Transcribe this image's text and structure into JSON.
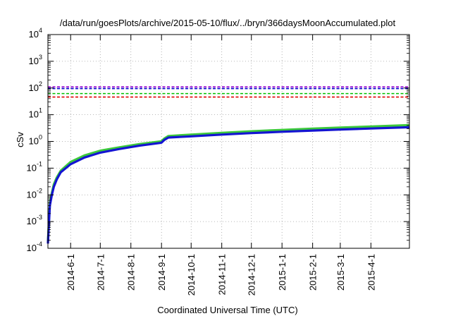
{
  "chart_data": {
    "type": "line",
    "title": "/data/run/goesPlots/archive/2015-05-10/flux/../bryn/366daysMoonAccumulated.plot",
    "xlabel": "Coordinated Universal Time (UTC)",
    "ylabel": "cSv",
    "yscale": "log",
    "ylim": [
      0.0001,
      10000
    ],
    "xlim": [
      "2014-05-09",
      "2015-05-10"
    ],
    "grid": true,
    "x_ticks": [
      "2014-6-1",
      "2014-7-1",
      "2014-8-1",
      "2014-9-1",
      "2014-10-1",
      "2014-11-1",
      "2014-12-1",
      "2015-1-1",
      "2015-2-1",
      "2015-3-1",
      "2015-4-1"
    ],
    "y_ticks": [
      {
        "value": 0.0001,
        "base": "10",
        "exp": "-4"
      },
      {
        "value": 0.001,
        "base": "10",
        "exp": "-3"
      },
      {
        "value": 0.01,
        "base": "10",
        "exp": "-2"
      },
      {
        "value": 0.1,
        "base": "10",
        "exp": "-1"
      },
      {
        "value": 1,
        "base": "10",
        "exp": "0"
      },
      {
        "value": 10,
        "base": "10",
        "exp": "1"
      },
      {
        "value": 100,
        "base": "10",
        "exp": "2"
      },
      {
        "value": 1000,
        "base": "10",
        "exp": "3"
      },
      {
        "value": 10000,
        "base": "10",
        "exp": "4"
      }
    ],
    "thresholds": [
      {
        "value": 110,
        "color": "#9400d3"
      },
      {
        "value": 95,
        "color": "#0000cd"
      },
      {
        "value": 62,
        "color": "#00c000"
      },
      {
        "value": 46,
        "color": "#e00000"
      }
    ],
    "series": [
      {
        "color": "#3cc83c",
        "x": [
          "2014-05-09",
          "2014-05-10",
          "2014-05-11",
          "2014-05-13",
          "2014-05-15",
          "2014-05-18",
          "2014-05-22",
          "2014-06-01",
          "2014-06-15",
          "2014-07-01",
          "2014-07-20",
          "2014-08-10",
          "2014-08-31",
          "2014-09-01",
          "2014-09-04",
          "2014-09-08",
          "2014-10-01",
          "2014-11-01",
          "2014-12-01",
          "2015-01-01",
          "2015-02-01",
          "2015-03-01",
          "2015-04-01",
          "2015-05-10"
        ],
        "y": [
          0.00018,
          0.001,
          0.005,
          0.012,
          0.025,
          0.045,
          0.08,
          0.17,
          0.3,
          0.45,
          0.6,
          0.8,
          1.0,
          1.02,
          1.3,
          1.6,
          1.8,
          2.1,
          2.4,
          2.7,
          3.0,
          3.3,
          3.6,
          4.1
        ]
      },
      {
        "color": "#1414d2",
        "x": [
          "2014-05-09",
          "2014-05-10",
          "2014-05-11",
          "2014-05-13",
          "2014-05-15",
          "2014-05-18",
          "2014-05-22",
          "2014-06-01",
          "2014-06-15",
          "2014-07-01",
          "2014-07-20",
          "2014-08-10",
          "2014-08-31",
          "2014-09-01",
          "2014-09-04",
          "2014-09-08",
          "2014-10-01",
          "2014-11-01",
          "2014-12-01",
          "2015-01-01",
          "2015-02-01",
          "2015-03-01",
          "2015-04-01",
          "2015-05-10"
        ],
        "y": [
          0.00015,
          0.0008,
          0.004,
          0.01,
          0.02,
          0.038,
          0.07,
          0.14,
          0.25,
          0.38,
          0.52,
          0.7,
          0.88,
          0.9,
          1.15,
          1.4,
          1.55,
          1.8,
          2.05,
          2.3,
          2.55,
          2.8,
          3.05,
          3.4
        ]
      }
    ]
  }
}
